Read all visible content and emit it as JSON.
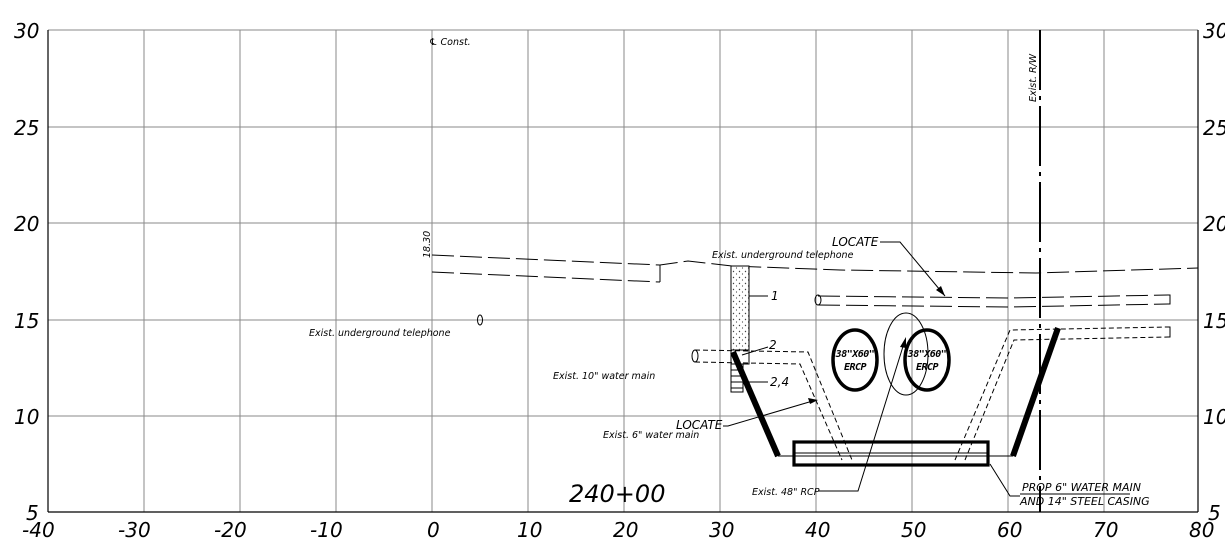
{
  "axes": {
    "x_ticks": [
      "-40",
      "-30",
      "-20",
      "-10",
      "0",
      "10",
      "20",
      "30",
      "40",
      "50",
      "60",
      "70",
      "80"
    ],
    "y_ticks_left": [
      "30",
      "25",
      "20",
      "15",
      "10",
      "5"
    ],
    "y_ticks_right": [
      "30",
      "25",
      "20",
      "15",
      "10",
      "5"
    ]
  },
  "labels": {
    "const": "℄ Const.",
    "elev": "18.30",
    "tel_left": "Exist. underground telephone",
    "tel_right": "Exist. underground telephone",
    "locate_top": "LOCATE",
    "row": "Exist. R/W",
    "call1": "1",
    "call2": "2",
    "call24": "2,4",
    "wm10": "Exist. 10\" water main",
    "locate_low": "LOCATE",
    "wm6": "Exist. 6\" water main",
    "rcp": "Exist. 48\" RCP",
    "station": "240+00",
    "ercp1_size": "38\"X60\"",
    "ercp1_type": "ERCP",
    "ercp2_size": "38\"X60\"",
    "ercp2_type": "ERCP",
    "prop_line1": "PROP 6\" WATER MAIN",
    "prop_line2": "AND 14\" STEEL CASING"
  }
}
